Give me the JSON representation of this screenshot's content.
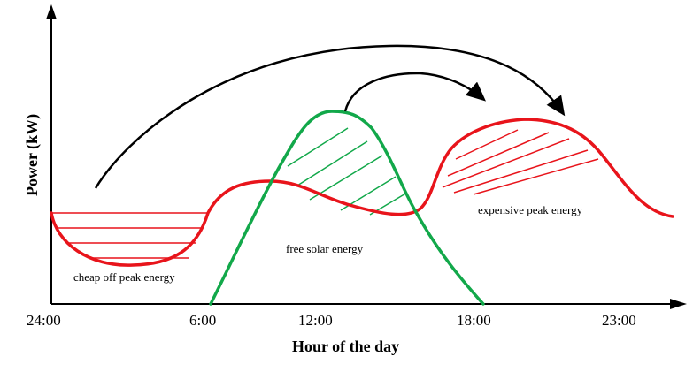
{
  "diagram": {
    "y_axis_title": "Power (kW)",
    "x_axis_title": "Hour of the day",
    "x_ticks": [
      "24:00",
      "6:00",
      "12:00",
      "18:00",
      "23:00"
    ],
    "annotations": {
      "off_peak": "cheap off peak energy",
      "solar": "free solar energy",
      "peak": "expensive peak energy"
    },
    "colors": {
      "demand_curve": "#e8141b",
      "solar_curve": "#12a84a",
      "axis": "#000000",
      "arrow": "#000000"
    }
  }
}
